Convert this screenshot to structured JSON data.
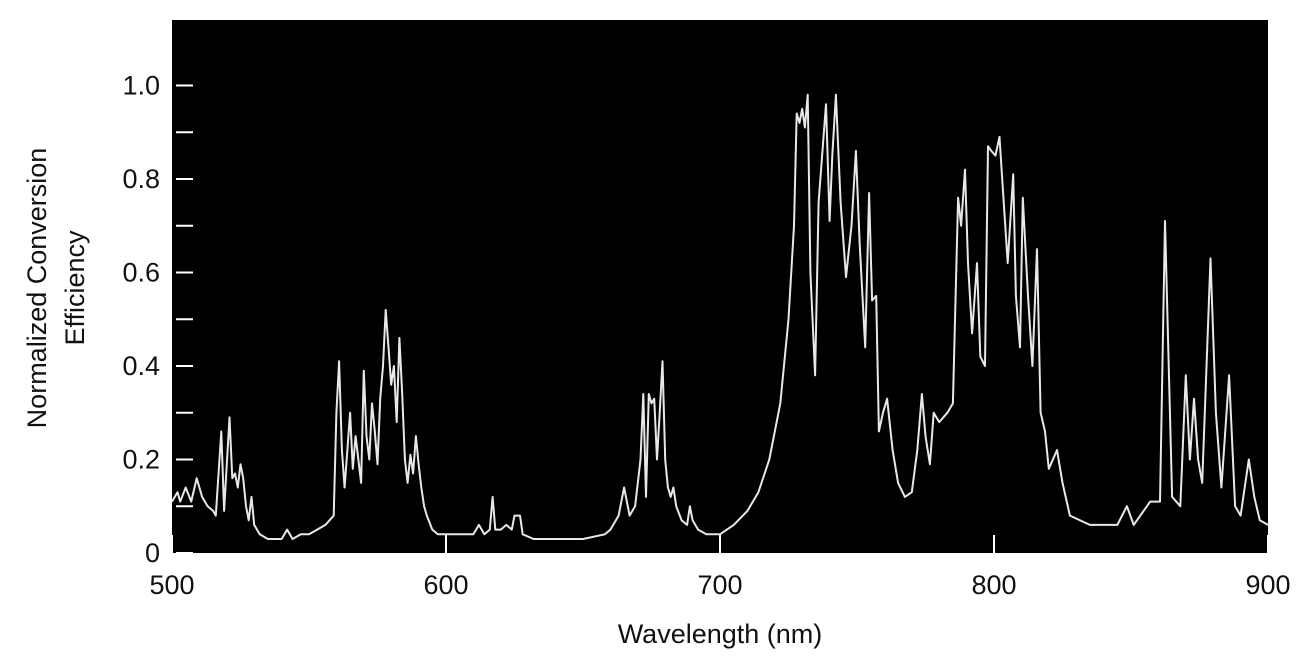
{
  "chart_data": {
    "type": "line",
    "xlabel": "Wavelength (nm)",
    "ylabel": [
      "Normalized Conversion",
      "Efficiency"
    ],
    "xlim": [
      500,
      900
    ],
    "ylim": [
      0,
      1.14
    ],
    "xticks": [
      500,
      600,
      700,
      800,
      900
    ],
    "yticks": [
      0,
      0.2,
      0.4,
      0.6,
      0.8,
      {
        "value": 1,
        "label": "1.0"
      }
    ],
    "minor_yticks": [
      0.1,
      0.3,
      0.5,
      0.7,
      0.9
    ],
    "background": "#000000",
    "color": "#e8e8e8",
    "x": [
      500,
      502,
      503,
      505,
      507,
      509,
      511,
      513,
      515,
      516,
      518,
      519,
      521,
      522,
      523,
      524,
      525,
      526,
      527,
      528,
      529,
      530,
      532,
      535,
      540,
      542,
      544,
      547,
      550,
      553,
      556,
      559,
      560,
      561,
      562,
      563,
      565,
      566,
      567,
      569,
      570,
      571,
      572,
      573,
      574,
      575,
      576,
      577,
      578,
      579,
      580,
      581,
      582,
      583,
      584,
      585,
      586,
      587,
      588,
      589,
      590,
      591,
      592,
      593,
      595,
      597,
      600,
      605,
      610,
      612,
      614,
      616,
      617,
      618,
      620,
      622,
      624,
      625,
      627,
      628,
      632,
      650,
      658,
      660,
      663,
      665,
      667,
      669,
      671,
      672,
      673,
      674,
      675,
      676,
      677,
      678,
      679,
      680,
      681,
      682,
      683,
      684,
      686,
      688,
      689,
      690,
      692,
      695,
      700,
      705,
      710,
      714,
      718,
      722,
      725,
      727,
      728,
      729,
      730,
      731,
      732,
      733,
      734.7,
      736,
      738.7,
      740,
      741,
      742.3,
      744,
      746,
      748,
      749.6,
      751,
      753,
      754.4,
      755.5,
      757,
      758,
      759.5,
      761,
      763,
      765,
      767.5,
      770,
      772,
      773.7,
      775,
      776.6,
      778,
      780,
      783,
      785,
      786.9,
      788,
      789.4,
      790.5,
      792,
      793.8,
      795,
      796.7,
      797.8,
      799,
      800.5,
      802,
      803,
      805,
      807,
      808,
      809.5,
      810.5,
      812.4,
      814,
      815.7,
      817,
      818.6,
      820,
      823,
      825,
      827.7,
      835,
      845,
      848.5,
      851,
      857,
      860.6,
      862.4,
      865,
      868,
      870,
      871.5,
      873,
      874.5,
      876,
      879,
      881,
      883,
      885.8,
      888,
      890,
      893,
      895,
      897,
      900
    ],
    "values": [
      0.11,
      0.13,
      0.11,
      0.14,
      0.11,
      0.16,
      0.12,
      0.1,
      0.09,
      0.08,
      0.26,
      0.09,
      0.29,
      0.16,
      0.17,
      0.14,
      0.19,
      0.16,
      0.1,
      0.07,
      0.12,
      0.06,
      0.04,
      0.03,
      0.03,
      0.05,
      0.03,
      0.04,
      0.04,
      0.05,
      0.06,
      0.08,
      0.3,
      0.41,
      0.22,
      0.14,
      0.3,
      0.18,
      0.25,
      0.15,
      0.39,
      0.25,
      0.2,
      0.32,
      0.26,
      0.19,
      0.33,
      0.4,
      0.52,
      0.44,
      0.36,
      0.4,
      0.28,
      0.46,
      0.34,
      0.2,
      0.15,
      0.21,
      0.17,
      0.25,
      0.19,
      0.14,
      0.1,
      0.08,
      0.05,
      0.04,
      0.04,
      0.04,
      0.04,
      0.06,
      0.04,
      0.05,
      0.12,
      0.05,
      0.05,
      0.06,
      0.05,
      0.08,
      0.08,
      0.04,
      0.03,
      0.03,
      0.04,
      0.05,
      0.08,
      0.14,
      0.08,
      0.1,
      0.2,
      0.34,
      0.12,
      0.34,
      0.32,
      0.33,
      0.2,
      0.3,
      0.41,
      0.2,
      0.14,
      0.12,
      0.14,
      0.1,
      0.07,
      0.06,
      0.1,
      0.07,
      0.05,
      0.04,
      0.04,
      0.06,
      0.09,
      0.13,
      0.2,
      0.32,
      0.5,
      0.7,
      0.94,
      0.92,
      0.95,
      0.91,
      0.98,
      0.6,
      0.38,
      0.75,
      0.96,
      0.71,
      0.85,
      0.98,
      0.75,
      0.59,
      0.7,
      0.86,
      0.66,
      0.44,
      0.77,
      0.54,
      0.55,
      0.26,
      0.3,
      0.33,
      0.22,
      0.15,
      0.12,
      0.13,
      0.22,
      0.34,
      0.25,
      0.19,
      0.3,
      0.28,
      0.3,
      0.32,
      0.76,
      0.7,
      0.82,
      0.62,
      0.47,
      0.62,
      0.42,
      0.4,
      0.87,
      0.86,
      0.85,
      0.89,
      0.8,
      0.62,
      0.81,
      0.55,
      0.44,
      0.76,
      0.55,
      0.4,
      0.65,
      0.3,
      0.26,
      0.18,
      0.22,
      0.15,
      0.08,
      0.06,
      0.06,
      0.1,
      0.06,
      0.11,
      0.11,
      0.71,
      0.12,
      0.1,
      0.38,
      0.2,
      0.33,
      0.2,
      0.15,
      0.63,
      0.3,
      0.14,
      0.38,
      0.1,
      0.08,
      0.2,
      0.12,
      0.07,
      0.06
    ]
  }
}
